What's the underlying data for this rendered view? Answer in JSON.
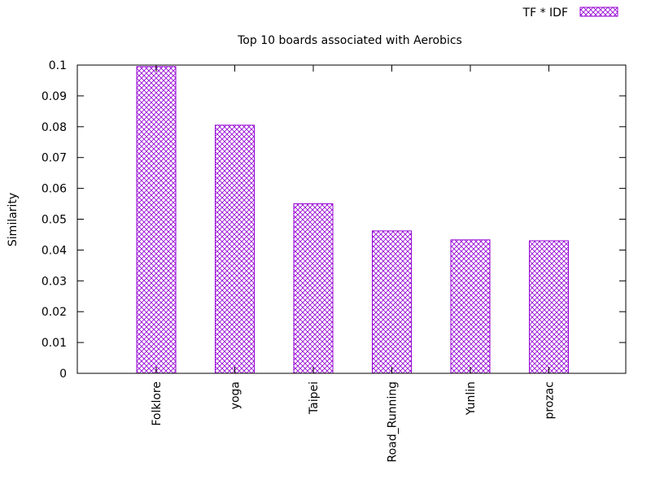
{
  "chart_data": {
    "type": "bar",
    "title": "Top 10 boards associated with Aerobics",
    "xlabel": "",
    "ylabel": "Similarity",
    "ylim": [
      0,
      0.1
    ],
    "yticks": [
      "0",
      "0.01",
      "0.02",
      "0.03",
      "0.04",
      "0.05",
      "0.06",
      "0.07",
      "0.08",
      "0.09",
      "0.1"
    ],
    "categories": [
      "Folklore",
      "yoga",
      "Taipei",
      "Road_Running",
      "Yunlin",
      "prozac"
    ],
    "series": [
      {
        "name": "TF * IDF",
        "values": [
          0.0995,
          0.0805,
          0.055,
          0.0462,
          0.0433,
          0.043
        ]
      }
    ],
    "legend_position": "top-right",
    "bar_pattern": "crosshatch",
    "bar_color": "#9400d3",
    "grid": false
  }
}
